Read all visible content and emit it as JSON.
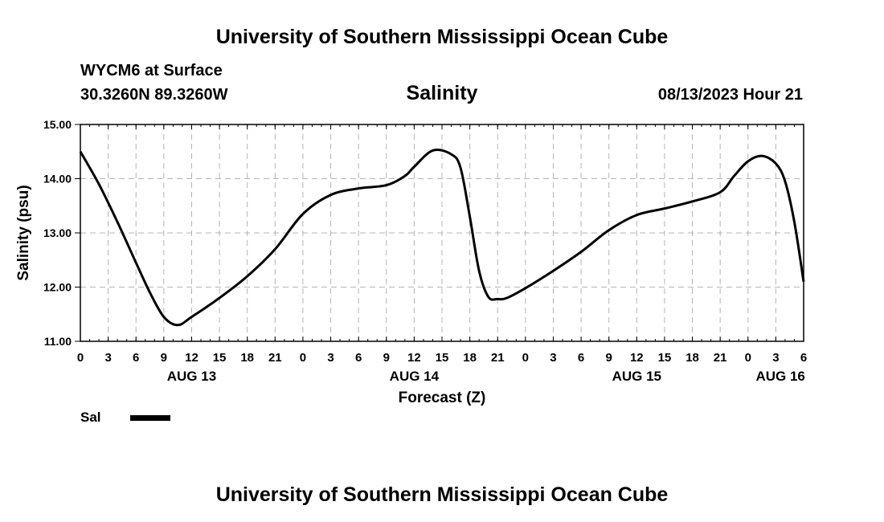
{
  "header": {
    "title": "University of Southern Mississippi Ocean Cube",
    "station": "WYCM6 at Surface",
    "coords": "30.3260N  89.3260W",
    "datetime": "08/13/2023 Hour 21"
  },
  "footer": {
    "title": "University of Southern Mississippi Ocean Cube"
  },
  "legend": {
    "label": "Sal"
  },
  "chart_data": {
    "type": "line",
    "title": "Salinity",
    "xlabel": "Forecast (Z)",
    "ylabel": "Salinity (psu)",
    "ylim": [
      11.0,
      15.0
    ],
    "y_ticks": [
      "11.00",
      "12.00",
      "13.00",
      "14.00",
      "15.00"
    ],
    "xlim": [
      0,
      78
    ],
    "x_ticks": [
      "0",
      "3",
      "6",
      "9",
      "12",
      "15",
      "18",
      "21",
      "0",
      "3",
      "6",
      "9",
      "12",
      "15",
      "18",
      "21",
      "0",
      "3",
      "6",
      "9",
      "12",
      "15",
      "18",
      "21",
      "0",
      "3",
      "6"
    ],
    "date_labels": [
      {
        "label": "AUG 13",
        "hour": 12
      },
      {
        "label": "AUG 14",
        "hour": 36
      },
      {
        "label": "AUG 15",
        "hour": 60
      },
      {
        "label": "AUG 16",
        "hour": 75.5
      }
    ],
    "grid": true,
    "series": [
      {
        "name": "Sal",
        "x": [
          0,
          2,
          4,
          6,
          7.5,
          9,
          10.5,
          12,
          15,
          18,
          21,
          24,
          27,
          30,
          33,
          35,
          36,
          38,
          40,
          41,
          42,
          43,
          44,
          45,
          46,
          48,
          51,
          54,
          57,
          60,
          63,
          66,
          69,
          70.5,
          72,
          73.5,
          75,
          76,
          77,
          78
        ],
        "values": [
          14.5,
          13.9,
          13.2,
          12.45,
          11.9,
          11.45,
          11.3,
          11.45,
          11.8,
          12.2,
          12.7,
          13.35,
          13.7,
          13.82,
          13.88,
          14.05,
          14.22,
          14.52,
          14.45,
          14.2,
          13.3,
          12.3,
          11.82,
          11.78,
          11.8,
          11.98,
          12.3,
          12.65,
          13.05,
          13.33,
          13.45,
          13.58,
          13.75,
          14.05,
          14.32,
          14.42,
          14.28,
          13.95,
          13.2,
          12.1
        ]
      }
    ]
  }
}
